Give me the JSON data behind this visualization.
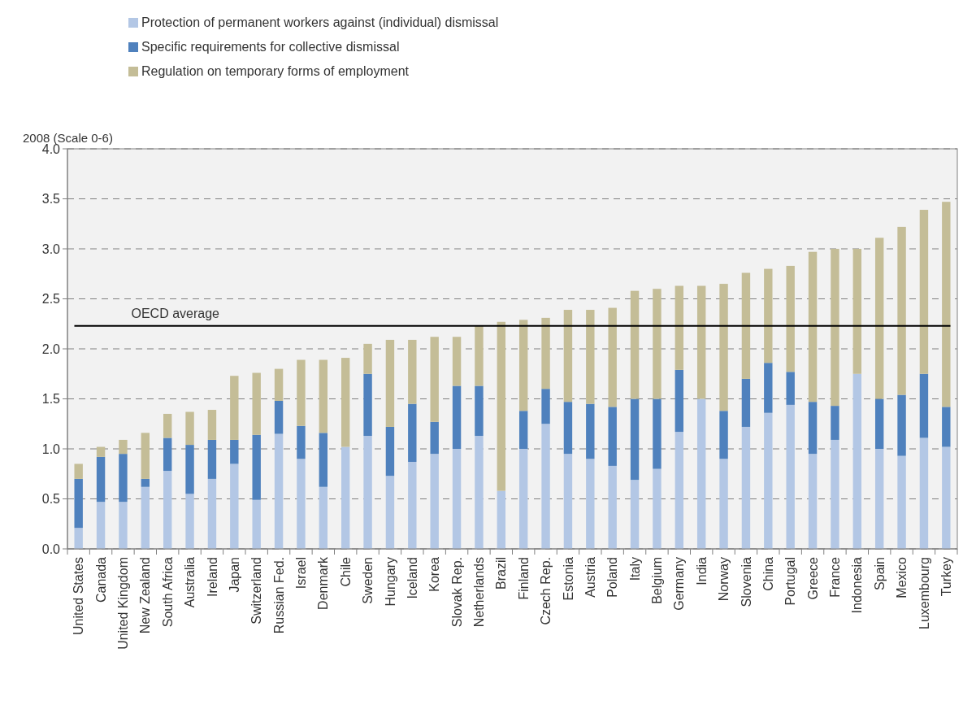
{
  "chart_data": {
    "type": "bar",
    "stacked": true,
    "ylabel": "2008 (Scale 0-6)",
    "categories": [
      "United States",
      "Canada",
      "United Kingdom",
      "New Zealand",
      "South Africa",
      "Australia",
      "Ireland",
      "Japan",
      "Switzerland",
      "Russian Fed.",
      "Israel",
      "Denmark",
      "Chile",
      "Sweden",
      "Hungary",
      "Iceland",
      "Korea",
      "Slovak Rep.",
      "Netherlands",
      "Brazil",
      "Finland",
      "Czech Rep.",
      "Estonia",
      "Austria",
      "Poland",
      "Italy",
      "Belgium",
      "Germany",
      "India",
      "Norway",
      "Slovenia",
      "China",
      "Portugal",
      "Greece",
      "France",
      "Indonesia",
      "Spain",
      "Mexico",
      "Luxembourg",
      "Turkey"
    ],
    "series": [
      {
        "name": "Protection of permanent workers against (individual) dismissal",
        "color": "#b3c7e5",
        "values": [
          0.21,
          0.47,
          0.47,
          0.62,
          0.78,
          0.55,
          0.7,
          0.85,
          0.49,
          1.15,
          0.9,
          0.62,
          1.02,
          1.13,
          0.73,
          0.87,
          0.95,
          1.0,
          1.13,
          0.58,
          1.0,
          1.25,
          0.95,
          0.9,
          0.83,
          0.69,
          0.8,
          1.17,
          1.5,
          0.9,
          1.22,
          1.36,
          1.44,
          0.95,
          1.09,
          1.75,
          1.0,
          0.93,
          1.11,
          1.02
        ]
      },
      {
        "name": "Specific requirements for collective dismissal",
        "color": "#4f81bd",
        "values": [
          0.49,
          0.45,
          0.48,
          0.08,
          0.33,
          0.49,
          0.39,
          0.24,
          0.65,
          0.33,
          0.33,
          0.54,
          0,
          0.62,
          0.49,
          0.58,
          0.32,
          0.63,
          0.5,
          0,
          0.38,
          0.35,
          0.52,
          0.55,
          0.59,
          0.81,
          0.7,
          0.62,
          0,
          0.48,
          0.48,
          0.5,
          0.33,
          0.52,
          0.34,
          0,
          0.5,
          0.61,
          0.64,
          0.4
        ]
      },
      {
        "name": "Regulation on temporary forms of employment",
        "color": "#c4bd97",
        "values": [
          0.15,
          0.1,
          0.14,
          0.46,
          0.24,
          0.33,
          0.3,
          0.64,
          0.62,
          0.32,
          0.66,
          0.73,
          0.89,
          0.3,
          0.87,
          0.64,
          0.85,
          0.49,
          0.6,
          1.69,
          0.91,
          0.71,
          0.92,
          0.94,
          0.99,
          1.08,
          1.1,
          0.84,
          1.13,
          1.27,
          1.06,
          0.94,
          1.06,
          1.5,
          1.57,
          1.25,
          1.61,
          1.68,
          1.64,
          2.05
        ]
      }
    ],
    "ylim": [
      0,
      4
    ],
    "yticks": [
      {
        "value": 0,
        "label": "0.0"
      },
      {
        "value": 0.5,
        "label": "0.5"
      },
      {
        "value": 1,
        "label": "1.0"
      },
      {
        "value": 1.5,
        "label": "1.5"
      },
      {
        "value": 2,
        "label": "2.0"
      },
      {
        "value": 2.5,
        "label": "2.5"
      },
      {
        "value": 3,
        "label": "3.0"
      },
      {
        "value": 3.5,
        "label": "3.5"
      },
      {
        "value": 4,
        "label": "4.0"
      }
    ],
    "grid": "y",
    "legend": "top",
    "ref_lines": [
      {
        "axis": "y",
        "value": 2.23,
        "label": "OECD average",
        "color": "#000000"
      }
    ]
  }
}
